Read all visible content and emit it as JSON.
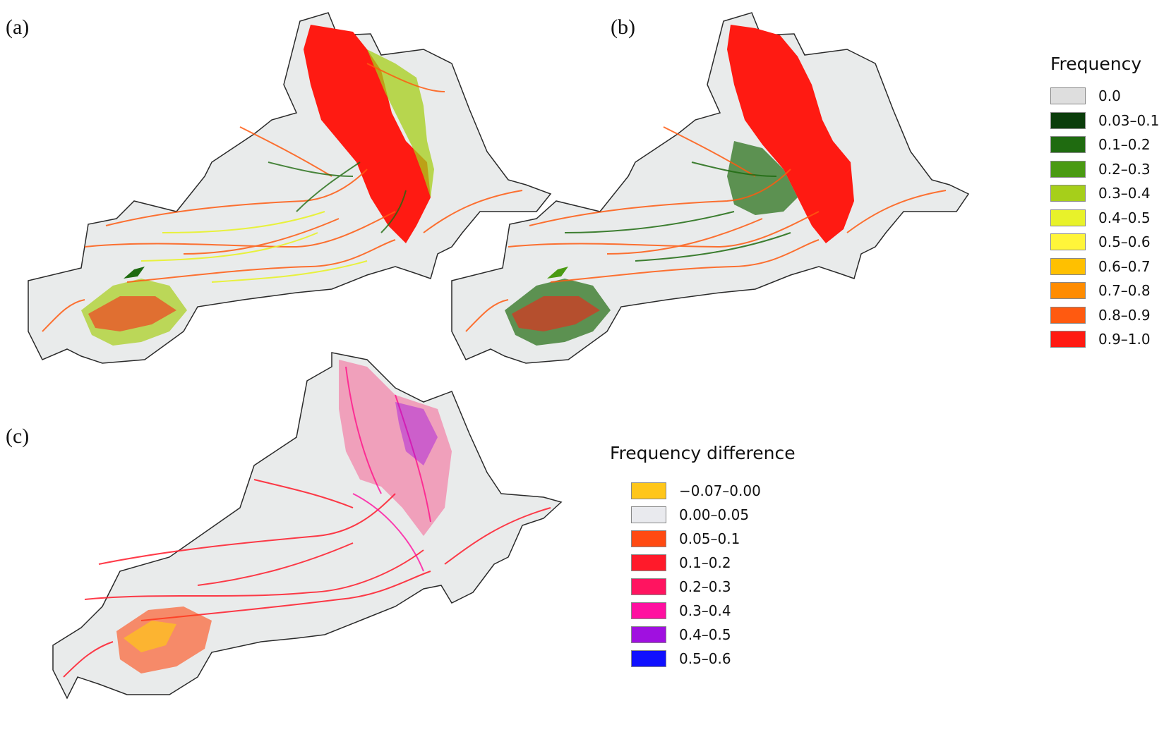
{
  "panels": {
    "a": {
      "label": "(a)"
    },
    "b": {
      "label": "(b)"
    },
    "c": {
      "label": "(c)"
    }
  },
  "legend_frequency": {
    "title": "Frequency",
    "items": [
      {
        "label": "0.0",
        "color": "#dedede"
      },
      {
        "label": "0.03–0.1",
        "color": "#0b3d0b"
      },
      {
        "label": "0.1–0.2",
        "color": "#1f6b10"
      },
      {
        "label": "0.2–0.3",
        "color": "#4a9a12"
      },
      {
        "label": "0.3–0.4",
        "color": "#a6cf1a"
      },
      {
        "label": "0.4–0.5",
        "color": "#e8f22a"
      },
      {
        "label": "0.5–0.6",
        "color": "#fff53a"
      },
      {
        "label": "0.6–0.7",
        "color": "#ffc000"
      },
      {
        "label": "0.7–0.8",
        "color": "#ff8c00"
      },
      {
        "label": "0.8–0.9",
        "color": "#ff5a10"
      },
      {
        "label": "0.9–1.0",
        "color": "#ff1a12"
      }
    ]
  },
  "legend_difference": {
    "title": "Frequency difference",
    "items": [
      {
        "label": "−0.07–0.00",
        "color": "#ffc61a"
      },
      {
        "label": "0.00–0.05",
        "color": "#e9eaee"
      },
      {
        "label": "0.05–0.1",
        "color": "#ff4a12"
      },
      {
        "label": "0.1–0.2",
        "color": "#ff1a2a"
      },
      {
        "label": "0.2–0.3",
        "color": "#ff1460"
      },
      {
        "label": "0.3–0.4",
        "color": "#ff10a0"
      },
      {
        "label": "0.4–0.5",
        "color": "#a010e0"
      },
      {
        "label": "0.5–0.6",
        "color": "#1010ff"
      }
    ]
  },
  "colors": {
    "basin_fill": "#e9ebeb",
    "basin_outline": "#2a2a2a"
  }
}
